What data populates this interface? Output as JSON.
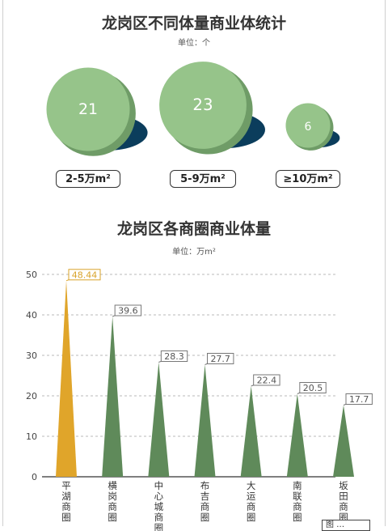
{
  "top_chart": {
    "title": "龙岗区不同体量商业体统计",
    "unit": "单位：个"
  },
  "bottom_chart": {
    "title": "龙岗区各商圈商业体量",
    "unit": "单位：万m²"
  },
  "footer_text": "图 …",
  "colors": {
    "bubble": "#96c48a",
    "bubble_dark": "#6f9c67",
    "shadow": "#0b3d5c",
    "cone_green": "#5f8a5a",
    "cone_gold": "#e0a52a",
    "label_gold": "#d9a32a",
    "grid": "#b9b9b9"
  },
  "chart_data": [
    {
      "type": "bubble",
      "title": "龙岗区不同体量商业体统计",
      "unit": "单位：个",
      "categories": [
        "2-5万m²",
        "5-9万m²",
        "≥10万m²"
      ],
      "values": [
        21,
        23,
        6
      ]
    },
    {
      "type": "bar",
      "title": "龙岗区各商圈商业体量",
      "unit": "单位：万m²",
      "categories": [
        "平湖商圈",
        "横岗商圈",
        "中心城商圈",
        "布吉商圈",
        "大运商圈",
        "南联商圈",
        "坂田商圈"
      ],
      "values": [
        48.44,
        39.6,
        28.3,
        27.7,
        22.4,
        20.5,
        17.7
      ],
      "value_labels": [
        "48.44",
        "39.6",
        "28.3",
        "27.7",
        "22.4",
        "20.5",
        "17.7"
      ],
      "highlight_index": 0,
      "yticks": [
        0,
        10,
        20,
        30,
        40,
        50
      ],
      "ylim": [
        0,
        50
      ],
      "grid": true
    }
  ]
}
